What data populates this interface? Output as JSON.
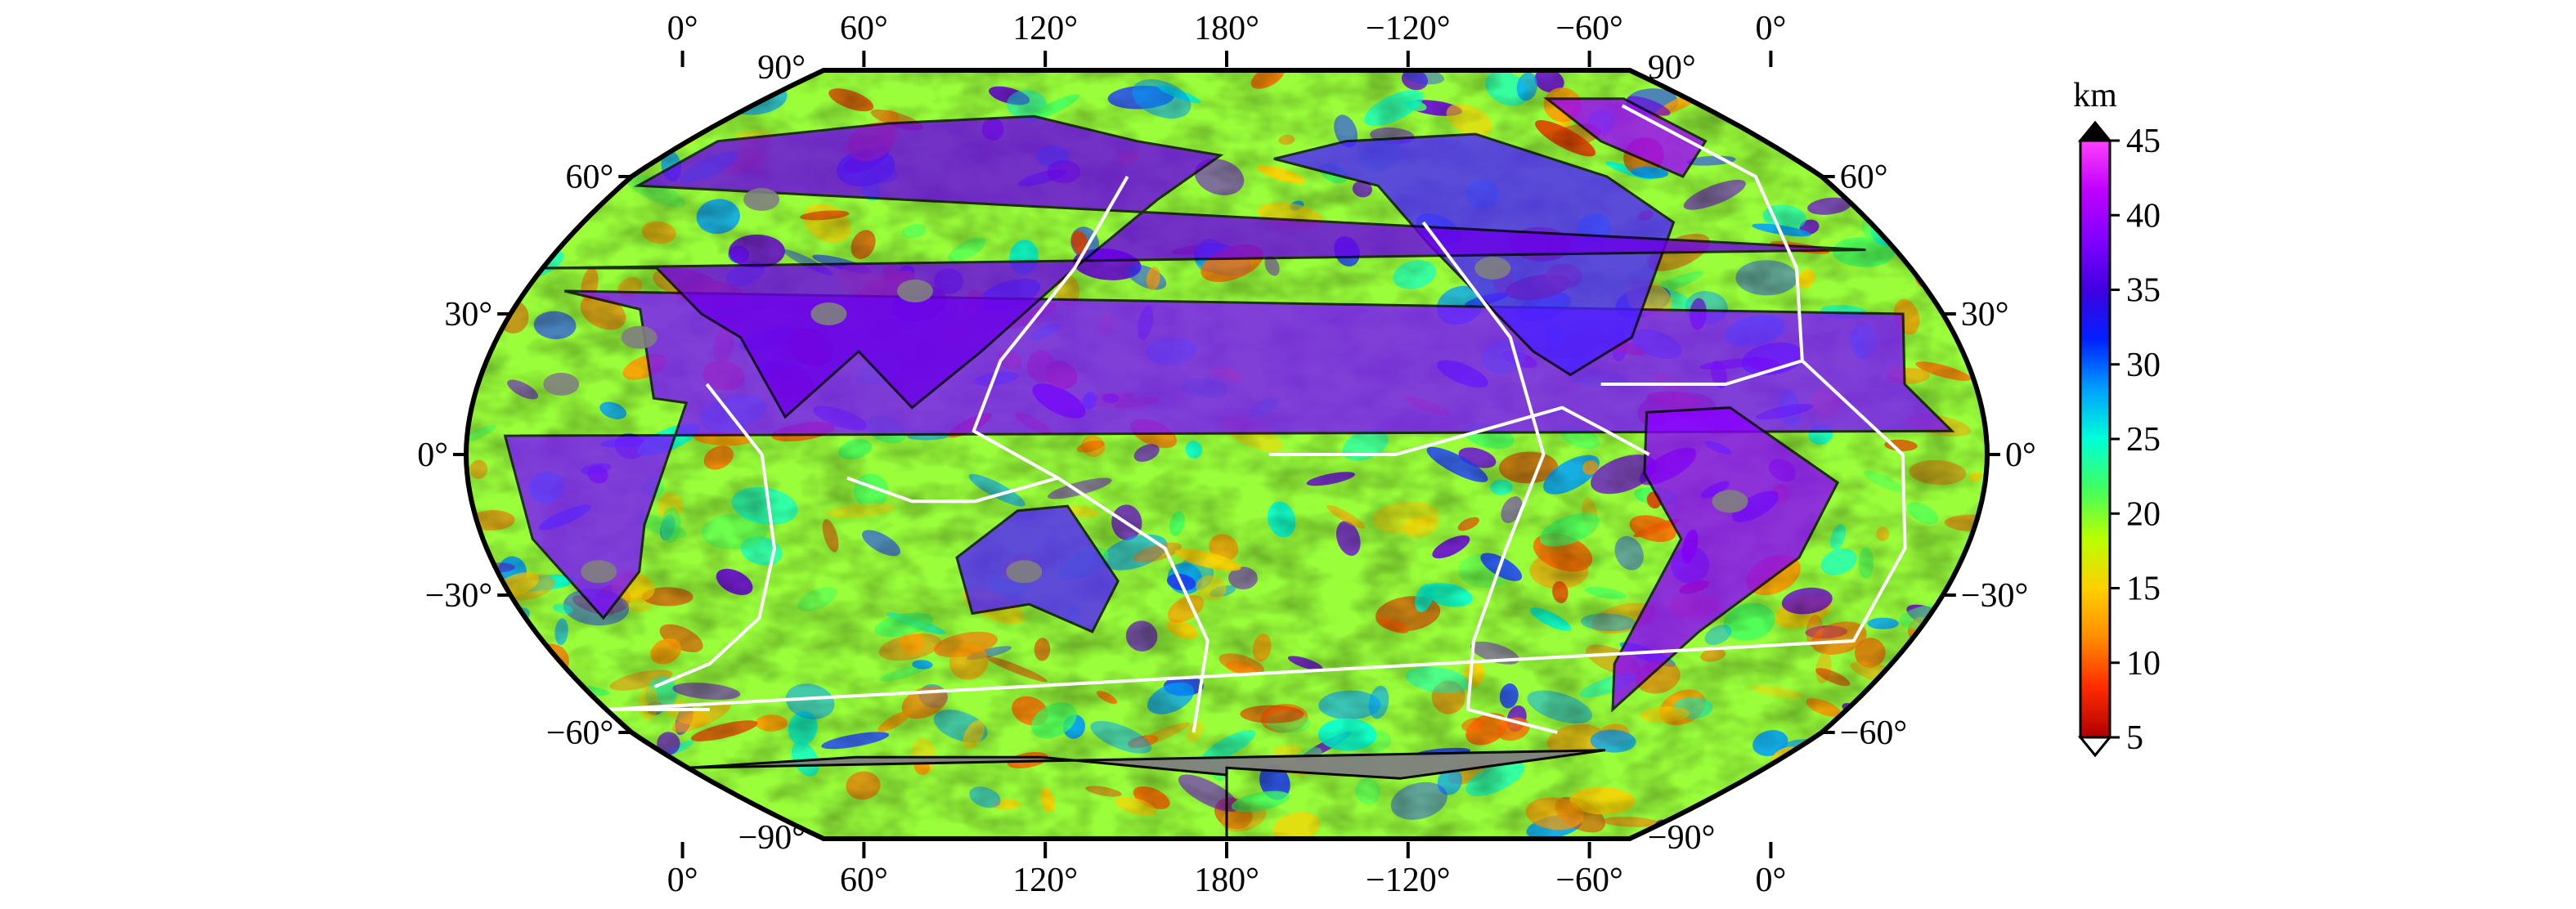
{
  "map": {
    "projection": "robinson",
    "central_meridian": 180,
    "colors": {
      "land_nodata": "#808080",
      "plate_boundaries": "#ffffff",
      "coastlines": "#000000",
      "frame": "#000000"
    },
    "top_lon_labels": [
      "0°",
      "60°",
      "120°",
      "180°",
      "−120°",
      "−60°",
      "0°"
    ],
    "bottom_lon_labels": [
      "0°",
      "60°",
      "120°",
      "180°",
      "−120°",
      "−60°",
      "0°"
    ],
    "left_lat_labels": [
      "90°",
      "60°",
      "30°",
      "0°",
      "−30°",
      "−60°",
      "−90°"
    ],
    "right_lat_labels": [
      "90°",
      "60°",
      "30°",
      "0°",
      "−30°",
      "−60°",
      "−90°"
    ]
  },
  "colorbar": {
    "unit": "km",
    "tick_labels": [
      "45",
      "40",
      "35",
      "30",
      "25",
      "20",
      "15",
      "10",
      "5"
    ],
    "range": [
      5,
      45
    ],
    "colors": [
      "#b00000",
      "#ff2a00",
      "#ff8c00",
      "#ffd000",
      "#b8ff00",
      "#40ff60",
      "#00ffd8",
      "#00a0ff",
      "#0020ff",
      "#4000e0",
      "#8000ff",
      "#c000ff",
      "#ff40ff"
    ],
    "top_triangle_color": "#000000",
    "bottom_triangle_color": "#ffffff"
  }
}
